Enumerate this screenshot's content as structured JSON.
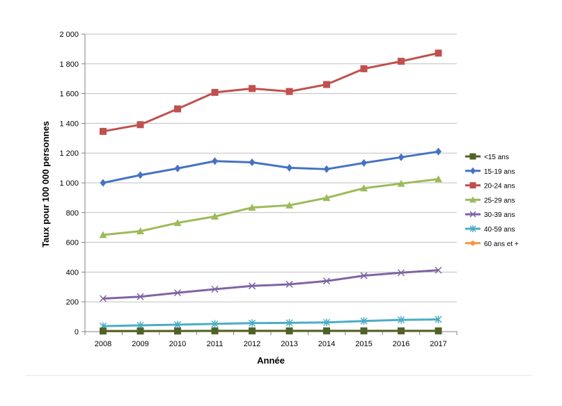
{
  "chart_data": {
    "type": "line",
    "title": "",
    "xlabel": "Année",
    "ylabel": "Taux pour 100 000 personnes",
    "x": [
      2008,
      2009,
      2010,
      2011,
      2012,
      2013,
      2014,
      2015,
      2016,
      2017
    ],
    "y_ticks": [
      "0",
      "200",
      "400",
      "600",
      "800",
      "1 000",
      "1 200",
      "1 400",
      "1 600",
      "1 800",
      "2 000"
    ],
    "ylim": [
      0,
      2000
    ],
    "grid": "horizontal",
    "legend_position": "right",
    "series": [
      {
        "name": "<15 ans",
        "color": "#4f6228",
        "marker": "square",
        "values": [
          4,
          4,
          4,
          5,
          5,
          5,
          5,
          5,
          5,
          5
        ]
      },
      {
        "name": "15-19 ans",
        "color": "#4472c4",
        "marker": "diamond",
        "values": [
          1000,
          1052,
          1097,
          1146,
          1138,
          1101,
          1092,
          1134,
          1172,
          1210
        ]
      },
      {
        "name": "20-24 ans",
        "color": "#c0504d",
        "marker": "square",
        "values": [
          1346,
          1391,
          1497,
          1608,
          1634,
          1614,
          1661,
          1767,
          1817,
          1872
        ]
      },
      {
        "name": "25-29 ans",
        "color": "#9bbb59",
        "marker": "triangle",
        "values": [
          650,
          675,
          731,
          774,
          834,
          849,
          899,
          964,
          995,
          1025
        ]
      },
      {
        "name": "30-39 ans",
        "color": "#8064a2",
        "marker": "x",
        "values": [
          222,
          235,
          261,
          285,
          307,
          318,
          340,
          376,
          396,
          413
        ]
      },
      {
        "name": "40-59 ans",
        "color": "#4bacc6",
        "marker": "star",
        "values": [
          37,
          42,
          47,
          52,
          57,
          59,
          62,
          71,
          79,
          82
        ]
      },
      {
        "name": "60 ans et +",
        "color": "#f79646",
        "marker": "circle",
        "values": [
          3,
          3,
          4,
          4,
          4,
          4,
          4,
          4,
          4,
          4
        ]
      }
    ]
  }
}
